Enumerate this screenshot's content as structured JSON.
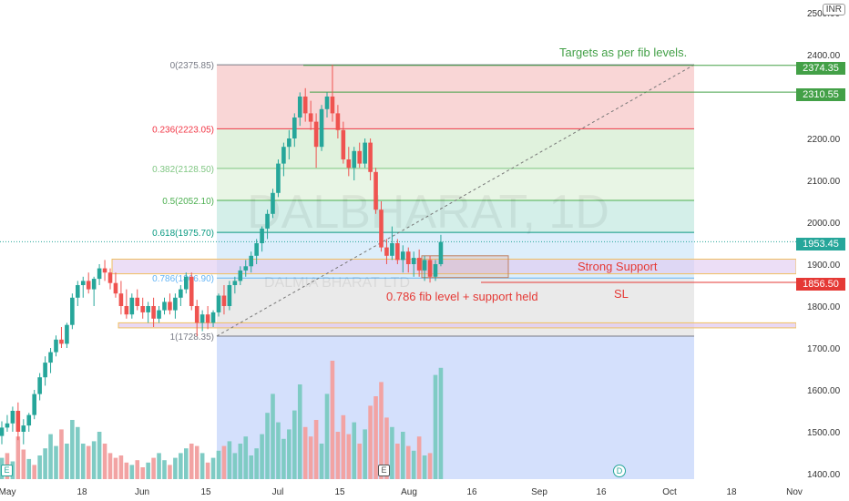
{
  "chart_data": {
    "type": "candlestick",
    "symbol_watermark": "DALBHARAT, 1D",
    "watermark_sub": "DALMIA BHARAT LTD",
    "currency": "INR",
    "y_ticks": [
      1400,
      1500,
      1600,
      1700,
      1800,
      1900,
      2000,
      2100,
      2200,
      2300,
      2400,
      2500
    ],
    "y_tick_labels": [
      "1400.00",
      "1500.00",
      "1600.00",
      "1700.00",
      "1800.00",
      "1900.00",
      "2000.00",
      "2100.00",
      "2200.00",
      "2300.00",
      "2400.00",
      "2500.00"
    ],
    "x_labels": [
      "May",
      "18",
      "Jun",
      "15",
      "Jul",
      "15",
      "Aug",
      "16",
      "Sep",
      "16",
      "Oct",
      "18",
      "Nov"
    ],
    "fib_levels": [
      {
        "label": "0(2375.85)",
        "price": 2375.85,
        "color": "#787b86"
      },
      {
        "label": "0.236(2223.05)",
        "price": 2223.05,
        "color": "#f23645"
      },
      {
        "label": "0.382(2128.50)",
        "price": 2128.5,
        "color": "#81c784"
      },
      {
        "label": "0.5(2052.10)",
        "price": 2052.1,
        "color": "#4caf50"
      },
      {
        "label": "0.618(1975.70)",
        "price": 1975.7,
        "color": "#089981"
      },
      {
        "label": "0.786(1866.90)",
        "price": 1866.9,
        "color": "#64b5f6"
      },
      {
        "label": "1(1728.35)",
        "price": 1728.35,
        "color": "#787b86"
      }
    ],
    "price_tags": [
      {
        "label": "2374.35",
        "price": 2374.35,
        "color": "#43a047"
      },
      {
        "label": "2310.55",
        "price": 2310.55,
        "color": "#43a047"
      },
      {
        "label": "1953.45",
        "price": 1953.45,
        "color": "#26a69a"
      },
      {
        "label": "1856.50",
        "price": 1856.5,
        "color": "#e53935"
      }
    ],
    "annotations": {
      "targets": "Targets as per fib levels.",
      "strong_support": "Strong Support",
      "sl": "SL",
      "held": "0.786 fib level + support held"
    },
    "candles": [
      {
        "o": 1490,
        "h": 1525,
        "l": 1470,
        "c": 1510
      },
      {
        "o": 1510,
        "h": 1540,
        "l": 1500,
        "c": 1520
      },
      {
        "o": 1520,
        "h": 1560,
        "l": 1500,
        "c": 1550
      },
      {
        "o": 1550,
        "h": 1570,
        "l": 1480,
        "c": 1500
      },
      {
        "o": 1500,
        "h": 1530,
        "l": 1470,
        "c": 1515
      },
      {
        "o": 1515,
        "h": 1545,
        "l": 1500,
        "c": 1540
      },
      {
        "o": 1540,
        "h": 1600,
        "l": 1530,
        "c": 1590
      },
      {
        "o": 1590,
        "h": 1640,
        "l": 1575,
        "c": 1630
      },
      {
        "o": 1630,
        "h": 1680,
        "l": 1610,
        "c": 1665
      },
      {
        "o": 1665,
        "h": 1700,
        "l": 1640,
        "c": 1690
      },
      {
        "o": 1690,
        "h": 1730,
        "l": 1680,
        "c": 1720
      },
      {
        "o": 1720,
        "h": 1750,
        "l": 1700,
        "c": 1710
      },
      {
        "o": 1710,
        "h": 1760,
        "l": 1700,
        "c": 1755
      },
      {
        "o": 1755,
        "h": 1830,
        "l": 1745,
        "c": 1820
      },
      {
        "o": 1820,
        "h": 1860,
        "l": 1800,
        "c": 1850
      },
      {
        "o": 1850,
        "h": 1870,
        "l": 1820,
        "c": 1860
      },
      {
        "o": 1860,
        "h": 1880,
        "l": 1830,
        "c": 1840
      },
      {
        "o": 1840,
        "h": 1870,
        "l": 1800,
        "c": 1865
      },
      {
        "o": 1865,
        "h": 1900,
        "l": 1850,
        "c": 1890
      },
      {
        "o": 1890,
        "h": 1910,
        "l": 1860,
        "c": 1880
      },
      {
        "o": 1880,
        "h": 1890,
        "l": 1840,
        "c": 1855
      },
      {
        "o": 1855,
        "h": 1880,
        "l": 1820,
        "c": 1830
      },
      {
        "o": 1830,
        "h": 1860,
        "l": 1780,
        "c": 1800
      },
      {
        "o": 1800,
        "h": 1840,
        "l": 1770,
        "c": 1780
      },
      {
        "o": 1780,
        "h": 1830,
        "l": 1770,
        "c": 1820
      },
      {
        "o": 1820,
        "h": 1840,
        "l": 1790,
        "c": 1800
      },
      {
        "o": 1800,
        "h": 1820,
        "l": 1770,
        "c": 1785
      },
      {
        "o": 1785,
        "h": 1810,
        "l": 1760,
        "c": 1800
      },
      {
        "o": 1800,
        "h": 1820,
        "l": 1750,
        "c": 1770
      },
      {
        "o": 1770,
        "h": 1800,
        "l": 1760,
        "c": 1790
      },
      {
        "o": 1790,
        "h": 1820,
        "l": 1780,
        "c": 1810
      },
      {
        "o": 1810,
        "h": 1830,
        "l": 1780,
        "c": 1790
      },
      {
        "o": 1790,
        "h": 1830,
        "l": 1770,
        "c": 1820
      },
      {
        "o": 1820,
        "h": 1850,
        "l": 1800,
        "c": 1840
      },
      {
        "o": 1840,
        "h": 1880,
        "l": 1830,
        "c": 1870
      },
      {
        "o": 1870,
        "h": 1880,
        "l": 1790,
        "c": 1800
      },
      {
        "o": 1800,
        "h": 1815,
        "l": 1728,
        "c": 1760
      },
      {
        "o": 1760,
        "h": 1790,
        "l": 1740,
        "c": 1780
      },
      {
        "o": 1780,
        "h": 1800,
        "l": 1745,
        "c": 1760
      },
      {
        "o": 1760,
        "h": 1790,
        "l": 1750,
        "c": 1785
      },
      {
        "o": 1785,
        "h": 1830,
        "l": 1775,
        "c": 1825
      },
      {
        "o": 1825,
        "h": 1850,
        "l": 1780,
        "c": 1800
      },
      {
        "o": 1800,
        "h": 1860,
        "l": 1790,
        "c": 1850
      },
      {
        "o": 1850,
        "h": 1870,
        "l": 1830,
        "c": 1860
      },
      {
        "o": 1860,
        "h": 1895,
        "l": 1850,
        "c": 1885
      },
      {
        "o": 1885,
        "h": 1910,
        "l": 1870,
        "c": 1895
      },
      {
        "o": 1895,
        "h": 1930,
        "l": 1880,
        "c": 1920
      },
      {
        "o": 1920,
        "h": 1960,
        "l": 1900,
        "c": 1950
      },
      {
        "o": 1950,
        "h": 1990,
        "l": 1930,
        "c": 1985
      },
      {
        "o": 1985,
        "h": 2030,
        "l": 1960,
        "c": 2020
      },
      {
        "o": 2020,
        "h": 2080,
        "l": 2010,
        "c": 2070
      },
      {
        "o": 2070,
        "h": 2150,
        "l": 2060,
        "c": 2140
      },
      {
        "o": 2140,
        "h": 2190,
        "l": 2110,
        "c": 2180
      },
      {
        "o": 2180,
        "h": 2220,
        "l": 2150,
        "c": 2200
      },
      {
        "o": 2200,
        "h": 2260,
        "l": 2180,
        "c": 2250
      },
      {
        "o": 2250,
        "h": 2310,
        "l": 2230,
        "c": 2300
      },
      {
        "o": 2300,
        "h": 2320,
        "l": 2240,
        "c": 2260
      },
      {
        "o": 2260,
        "h": 2290,
        "l": 2220,
        "c": 2240
      },
      {
        "o": 2240,
        "h": 2260,
        "l": 2130,
        "c": 2180
      },
      {
        "o": 2180,
        "h": 2280,
        "l": 2170,
        "c": 2270
      },
      {
        "o": 2270,
        "h": 2310,
        "l": 2250,
        "c": 2300
      },
      {
        "o": 2300,
        "h": 2376,
        "l": 2240,
        "c": 2260
      },
      {
        "o": 2260,
        "h": 2280,
        "l": 2200,
        "c": 2220
      },
      {
        "o": 2220,
        "h": 2240,
        "l": 2140,
        "c": 2150
      },
      {
        "o": 2150,
        "h": 2180,
        "l": 2110,
        "c": 2130
      },
      {
        "o": 2130,
        "h": 2180,
        "l": 2100,
        "c": 2170
      },
      {
        "o": 2170,
        "h": 2190,
        "l": 2130,
        "c": 2140
      },
      {
        "o": 2140,
        "h": 2200,
        "l": 2130,
        "c": 2190
      },
      {
        "o": 2190,
        "h": 2200,
        "l": 2100,
        "c": 2120
      },
      {
        "o": 2120,
        "h": 2130,
        "l": 2020,
        "c": 2030
      },
      {
        "o": 2030,
        "h": 2050,
        "l": 1930,
        "c": 1940
      },
      {
        "o": 1940,
        "h": 1960,
        "l": 1900,
        "c": 1920
      },
      {
        "o": 1920,
        "h": 1990,
        "l": 1910,
        "c": 1950
      },
      {
        "o": 1950,
        "h": 1960,
        "l": 1900,
        "c": 1910
      },
      {
        "o": 1910,
        "h": 1945,
        "l": 1880,
        "c": 1930
      },
      {
        "o": 1930,
        "h": 1940,
        "l": 1880,
        "c": 1900
      },
      {
        "o": 1900,
        "h": 1930,
        "l": 1870,
        "c": 1915
      },
      {
        "o": 1915,
        "h": 1935,
        "l": 1870,
        "c": 1885
      },
      {
        "o": 1885,
        "h": 1920,
        "l": 1860,
        "c": 1910
      },
      {
        "o": 1910,
        "h": 1920,
        "l": 1856,
        "c": 1870
      },
      {
        "o": 1870,
        "h": 1910,
        "l": 1860,
        "c": 1900
      },
      {
        "o": 1900,
        "h": 1970,
        "l": 1895,
        "c": 1953
      }
    ],
    "volume": [
      {
        "v": 0.18,
        "up": true
      },
      {
        "v": 0.22,
        "up": false
      },
      {
        "v": 0.15,
        "up": true
      },
      {
        "v": 0.36,
        "up": false
      },
      {
        "v": 0.25,
        "up": false
      },
      {
        "v": 0.17,
        "up": true
      },
      {
        "v": 0.12,
        "up": false
      },
      {
        "v": 0.2,
        "up": true
      },
      {
        "v": 0.26,
        "up": true
      },
      {
        "v": 0.38,
        "up": true
      },
      {
        "v": 0.28,
        "up": true
      },
      {
        "v": 0.42,
        "up": false
      },
      {
        "v": 0.3,
        "up": true
      },
      {
        "v": 0.5,
        "up": true
      },
      {
        "v": 0.44,
        "up": true
      },
      {
        "v": 0.3,
        "up": true
      },
      {
        "v": 0.28,
        "up": false
      },
      {
        "v": 0.32,
        "up": true
      },
      {
        "v": 0.4,
        "up": true
      },
      {
        "v": 0.3,
        "up": false
      },
      {
        "v": 0.22,
        "up": false
      },
      {
        "v": 0.18,
        "up": false
      },
      {
        "v": 0.2,
        "up": false
      },
      {
        "v": 0.14,
        "up": false
      },
      {
        "v": 0.12,
        "up": true
      },
      {
        "v": 0.16,
        "up": false
      },
      {
        "v": 0.1,
        "up": false
      },
      {
        "v": 0.14,
        "up": true
      },
      {
        "v": 0.18,
        "up": false
      },
      {
        "v": 0.22,
        "up": true
      },
      {
        "v": 0.16,
        "up": true
      },
      {
        "v": 0.12,
        "up": false
      },
      {
        "v": 0.18,
        "up": true
      },
      {
        "v": 0.22,
        "up": true
      },
      {
        "v": 0.26,
        "up": true
      },
      {
        "v": 0.3,
        "up": false
      },
      {
        "v": 0.28,
        "up": false
      },
      {
        "v": 0.22,
        "up": true
      },
      {
        "v": 0.14,
        "up": false
      },
      {
        "v": 0.18,
        "up": true
      },
      {
        "v": 0.24,
        "up": true
      },
      {
        "v": 0.28,
        "up": false
      },
      {
        "v": 0.32,
        "up": true
      },
      {
        "v": 0.22,
        "up": true
      },
      {
        "v": 0.3,
        "up": true
      },
      {
        "v": 0.36,
        "up": true
      },
      {
        "v": 0.2,
        "up": true
      },
      {
        "v": 0.26,
        "up": true
      },
      {
        "v": 0.38,
        "up": true
      },
      {
        "v": 0.56,
        "up": true
      },
      {
        "v": 0.72,
        "up": true
      },
      {
        "v": 0.48,
        "up": true
      },
      {
        "v": 0.34,
        "up": true
      },
      {
        "v": 0.42,
        "up": true
      },
      {
        "v": 0.58,
        "up": true
      },
      {
        "v": 0.8,
        "up": true
      },
      {
        "v": 0.44,
        "up": false
      },
      {
        "v": 0.36,
        "up": false
      },
      {
        "v": 0.5,
        "up": false
      },
      {
        "v": 0.3,
        "up": true
      },
      {
        "v": 0.72,
        "up": true
      },
      {
        "v": 1.0,
        "up": false
      },
      {
        "v": 0.4,
        "up": false
      },
      {
        "v": 0.54,
        "up": false
      },
      {
        "v": 0.38,
        "up": false
      },
      {
        "v": 0.48,
        "up": true
      },
      {
        "v": 0.3,
        "up": false
      },
      {
        "v": 0.42,
        "up": true
      },
      {
        "v": 0.62,
        "up": false
      },
      {
        "v": 0.7,
        "up": false
      },
      {
        "v": 0.82,
        "up": false
      },
      {
        "v": 0.52,
        "up": false
      },
      {
        "v": 0.44,
        "up": true
      },
      {
        "v": 0.3,
        "up": false
      },
      {
        "v": 0.4,
        "up": true
      },
      {
        "v": 0.28,
        "up": false
      },
      {
        "v": 0.24,
        "up": true
      },
      {
        "v": 0.36,
        "up": false
      },
      {
        "v": 0.2,
        "up": true
      },
      {
        "v": 0.22,
        "up": false
      },
      {
        "v": 0.88,
        "up": true
      },
      {
        "v": 0.94,
        "up": true
      }
    ]
  }
}
